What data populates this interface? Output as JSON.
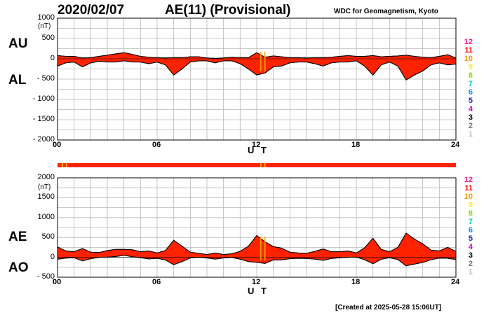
{
  "header": {
    "date": "2020/02/07",
    "index_title": "AE(11) (Provisional)",
    "center": "WDC for Geomagnetism, Kyoto"
  },
  "footer": {
    "created": "[Created at 2025-05-28 15:06UT]"
  },
  "level_scale": [
    {
      "label": "12",
      "color": "#ff1a8c"
    },
    {
      "label": "11",
      "color": "#ff0000"
    },
    {
      "label": "10",
      "color": "#ff9900"
    },
    {
      "label": "9",
      "color": "#ffee00"
    },
    {
      "label": "8",
      "color": "#88dd00"
    },
    {
      "label": "7",
      "color": "#00cccc"
    },
    {
      "label": "6",
      "color": "#0088ff"
    },
    {
      "label": "5",
      "color": "#2222cc"
    },
    {
      "label": "4",
      "color": "#cc00cc"
    },
    {
      "label": "3",
      "color": "#000000"
    },
    {
      "label": "2",
      "color": "#777777"
    },
    {
      "label": "1",
      "color": "#bbbbbb"
    }
  ],
  "chart_data": [
    {
      "type": "area",
      "title": "AU / AL",
      "series_labels": {
        "upper": "AU",
        "lower": "AL"
      },
      "ylabel": "(nT)",
      "xlabel": "U T",
      "xlim": [
        0,
        24
      ],
      "ylim": [
        -2000,
        1000
      ],
      "y_ticks": [
        1000,
        500,
        0,
        -500,
        -1000,
        -1500,
        -2000
      ],
      "y_tick_labels": [
        "1000",
        "500",
        "0",
        "- 500",
        "- 1000",
        "- 1500",
        "- 2000"
      ],
      "x_ticks": [
        0,
        6,
        12,
        18,
        24
      ],
      "x_tick_labels": [
        "00",
        "06",
        "12",
        "18",
        "24"
      ],
      "grid": true,
      "fill_color": "#ff2200",
      "hours": [
        0,
        0.5,
        1,
        1.5,
        2,
        2.5,
        3,
        3.5,
        4,
        4.5,
        5,
        5.5,
        6,
        6.5,
        7,
        7.5,
        8,
        8.5,
        9,
        9.5,
        10,
        10.5,
        11,
        11.5,
        12,
        12.5,
        13,
        13.5,
        14,
        14.5,
        15,
        15.5,
        16,
        16.5,
        17,
        17.5,
        18,
        18.5,
        19,
        19.5,
        20,
        20.5,
        21,
        21.5,
        22,
        22.5,
        23,
        23.5,
        24
      ],
      "AU": [
        80,
        60,
        60,
        20,
        30,
        60,
        90,
        120,
        150,
        110,
        60,
        40,
        30,
        20,
        30,
        30,
        50,
        50,
        20,
        10,
        20,
        40,
        30,
        30,
        150,
        40,
        70,
        50,
        30,
        30,
        20,
        30,
        30,
        40,
        60,
        80,
        60,
        60,
        80,
        50,
        60,
        70,
        90,
        60,
        40,
        30,
        60,
        100,
        20
      ],
      "AL": [
        -180,
        -100,
        -80,
        -200,
        -100,
        -60,
        -80,
        -80,
        -50,
        -80,
        -80,
        -120,
        -80,
        -150,
        -400,
        -250,
        -80,
        -50,
        -50,
        -100,
        -50,
        -50,
        -120,
        -250,
        -400,
        -350,
        -200,
        -180,
        -100,
        -80,
        -80,
        -120,
        -180,
        -100,
        -80,
        -80,
        -50,
        -180,
        -400,
        -150,
        -80,
        -180,
        -520,
        -400,
        -300,
        -150,
        -100,
        -150,
        -130
      ]
    },
    {
      "type": "area",
      "title": "AE / AO",
      "series_labels": {
        "upper": "AE",
        "lower": "AO"
      },
      "ylabel": "(nT)",
      "xlabel": "U T",
      "xlim": [
        0,
        24
      ],
      "ylim": [
        -500,
        2000
      ],
      "y_ticks": [
        2000,
        1500,
        1000,
        500,
        0,
        -500
      ],
      "y_tick_labels": [
        "2000",
        "1500",
        "1000",
        "500",
        "0",
        "- 500"
      ],
      "x_ticks": [
        0,
        6,
        12,
        18,
        24
      ],
      "x_tick_labels": [
        "00",
        "06",
        "12",
        "18",
        "24"
      ],
      "grid": true,
      "fill_color": "#ff2200",
      "hours": [
        0,
        0.5,
        1,
        1.5,
        2,
        2.5,
        3,
        3.5,
        4,
        4.5,
        5,
        5.5,
        6,
        6.5,
        7,
        7.5,
        8,
        8.5,
        9,
        9.5,
        10,
        10.5,
        11,
        11.5,
        12,
        12.5,
        13,
        13.5,
        14,
        14.5,
        15,
        15.5,
        16,
        16.5,
        17,
        17.5,
        18,
        18.5,
        19,
        19.5,
        20,
        20.5,
        21,
        21.5,
        22,
        22.5,
        23,
        23.5,
        24
      ],
      "AE": [
        260,
        160,
        140,
        220,
        130,
        120,
        170,
        200,
        200,
        190,
        140,
        160,
        110,
        170,
        430,
        280,
        130,
        100,
        70,
        110,
        70,
        90,
        150,
        280,
        550,
        390,
        270,
        230,
        130,
        110,
        100,
        150,
        210,
        140,
        140,
        160,
        110,
        240,
        480,
        200,
        140,
        250,
        610,
        460,
        340,
        180,
        160,
        250,
        150
      ],
      "AO": [
        -50,
        -20,
        -10,
        -90,
        -35,
        0,
        5,
        20,
        50,
        15,
        -10,
        -40,
        -25,
        -65,
        -185,
        -110,
        -15,
        0,
        -15,
        -45,
        -15,
        -5,
        -45,
        -110,
        -125,
        -155,
        -65,
        -65,
        -35,
        -25,
        -30,
        -45,
        -75,
        -30,
        -10,
        0,
        5,
        -60,
        -160,
        -50,
        -10,
        -55,
        -215,
        -170,
        -130,
        -60,
        -20,
        -25,
        -55
      ]
    }
  ],
  "status_bar": {
    "color": "#ff2200",
    "marker_color": "#ffaa00",
    "marker_hours": [
      0.25,
      0.5,
      12.2,
      12.45
    ]
  }
}
